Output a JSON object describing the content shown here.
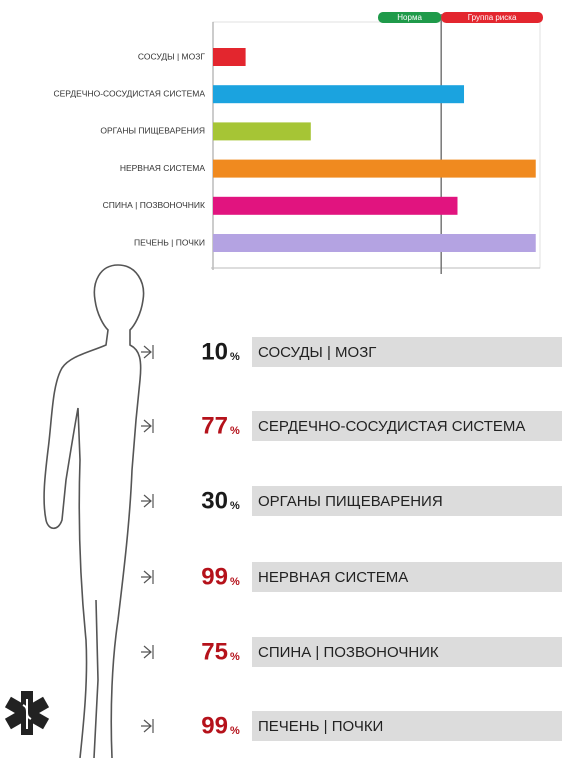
{
  "chart_data": {
    "type": "bar",
    "categories": [
      "СОСУДЫ | МОЗГ",
      "СЕРДЕЧНО-СОСУДИСТАЯ СИСТЕМА",
      "ОРГАНЫ ПИЩЕВАРЕНИЯ",
      "НЕРВНАЯ СИСТЕМА",
      "СПИНА | ПОЗВОНОЧНИК",
      "ПЕЧЕНЬ | ПОЧКИ"
    ],
    "values": [
      10,
      77,
      30,
      99,
      75,
      99
    ],
    "colors": [
      "#e3262e",
      "#1ba3df",
      "#a6c535",
      "#f08a1f",
      "#e1147f",
      "#b4a3e2"
    ],
    "xlim": [
      0,
      100
    ],
    "threshold": 70,
    "legend": [
      {
        "name": "Норма",
        "color": "#1f9a4a"
      },
      {
        "name": "Группа риска",
        "color": "#e3262e"
      }
    ],
    "unit": "%",
    "high_color": "#b5121b",
    "low_color": "#1a1a1a"
  }
}
